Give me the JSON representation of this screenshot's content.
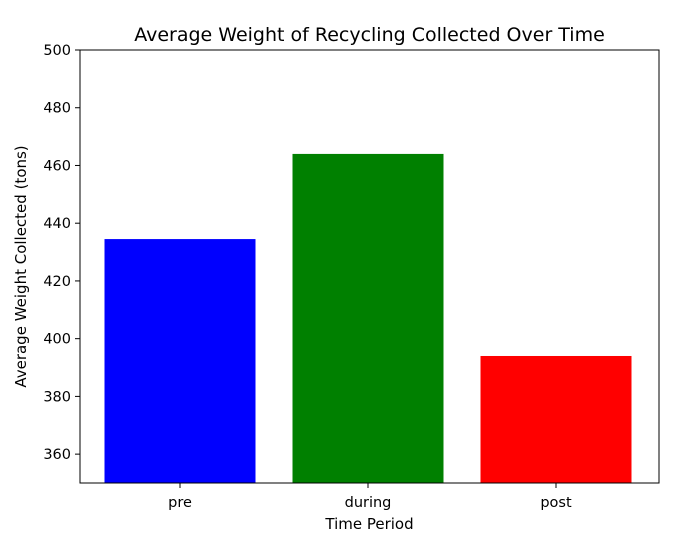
{
  "chart_data": {
    "type": "bar",
    "title": "Average Weight of Recycling Collected Over Time",
    "xlabel": "Time Period",
    "ylabel": "Average Weight Collected (tons)",
    "categories": [
      "pre",
      "during",
      "post"
    ],
    "values": [
      434.5,
      464,
      394
    ],
    "colors": [
      "#0000ff",
      "#008000",
      "#ff0000"
    ],
    "ylim": [
      350,
      500
    ],
    "yticks": [
      360,
      380,
      400,
      420,
      440,
      460,
      480,
      500
    ],
    "grid": false,
    "legend": "none"
  }
}
